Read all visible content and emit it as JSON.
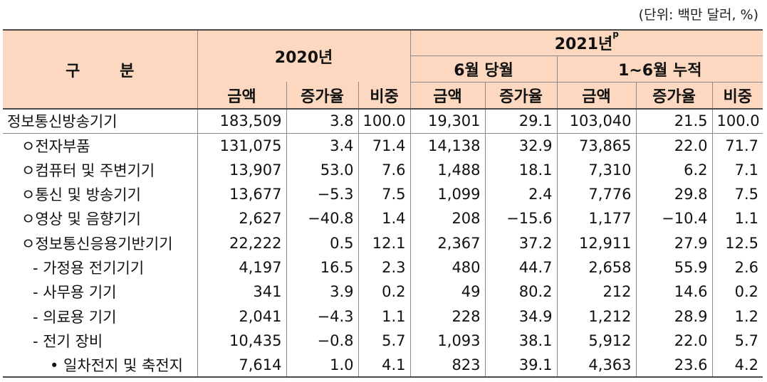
{
  "unit_note": "(단위: 백만 달러, %)",
  "header": {
    "category": "구 분",
    "year_2020": "2020년",
    "year_2021": "2021년",
    "year_2021_sup": "p",
    "june": "6월 당월",
    "cumulative": "1~6월 누적",
    "col_amount": "금액",
    "col_growth": "증가율",
    "col_share": "비중"
  },
  "rows": [
    {
      "label": "정보통신방송기기",
      "v": [
        "183,509",
        "3.8",
        "100.0",
        "19,301",
        "29.1",
        "103,040",
        "21.5",
        "100.0"
      ]
    },
    {
      "label": "ㅇ전자부품",
      "v": [
        "131,075",
        "3.4",
        "71.4",
        "14,138",
        "32.9",
        "73,865",
        "22.0",
        "71.7"
      ]
    },
    {
      "label": "ㅇ컴퓨터 및 주변기기",
      "v": [
        "13,907",
        "53.0",
        "7.6",
        "1,488",
        "18.1",
        "7,310",
        "6.2",
        "7.1"
      ]
    },
    {
      "label": "ㅇ통신 및 방송기기",
      "v": [
        "13,677",
        "−5.3",
        "7.5",
        "1,099",
        "2.4",
        "7,776",
        "29.8",
        "7.5"
      ]
    },
    {
      "label": "ㅇ영상 및 음향기기",
      "v": [
        "2,627",
        "−40.8",
        "1.4",
        "208",
        "−15.6",
        "1,177",
        "−10.4",
        "1.1"
      ]
    },
    {
      "label": "ㅇ정보통신응용기반기기",
      "v": [
        "22,222",
        "0.5",
        "12.1",
        "2,367",
        "37.2",
        "12,911",
        "27.9",
        "12.5"
      ]
    },
    {
      "label": "- 가정용 전기기기",
      "v": [
        "4,197",
        "16.5",
        "2.3",
        "480",
        "44.7",
        "2,658",
        "55.9",
        "2.6"
      ]
    },
    {
      "label": "- 사무용 기기",
      "v": [
        "341",
        "3.9",
        "0.2",
        "49",
        "80.2",
        "212",
        "14.6",
        "0.2"
      ]
    },
    {
      "label": "- 의료용 기기",
      "v": [
        "2,041",
        "−4.3",
        "1.1",
        "228",
        "34.9",
        "1,212",
        "28.9",
        "1.2"
      ]
    },
    {
      "label": "- 전기 장비",
      "v": [
        "10,435",
        "−0.8",
        "5.7",
        "1,093",
        "38.1",
        "5,912",
        "22.0",
        "5.7"
      ]
    },
    {
      "label": "• 일차전지 및 축전지",
      "v": [
        "7,614",
        "1.0",
        "4.1",
        "823",
        "39.1",
        "4,363",
        "23.6",
        "4.2"
      ]
    }
  ]
}
